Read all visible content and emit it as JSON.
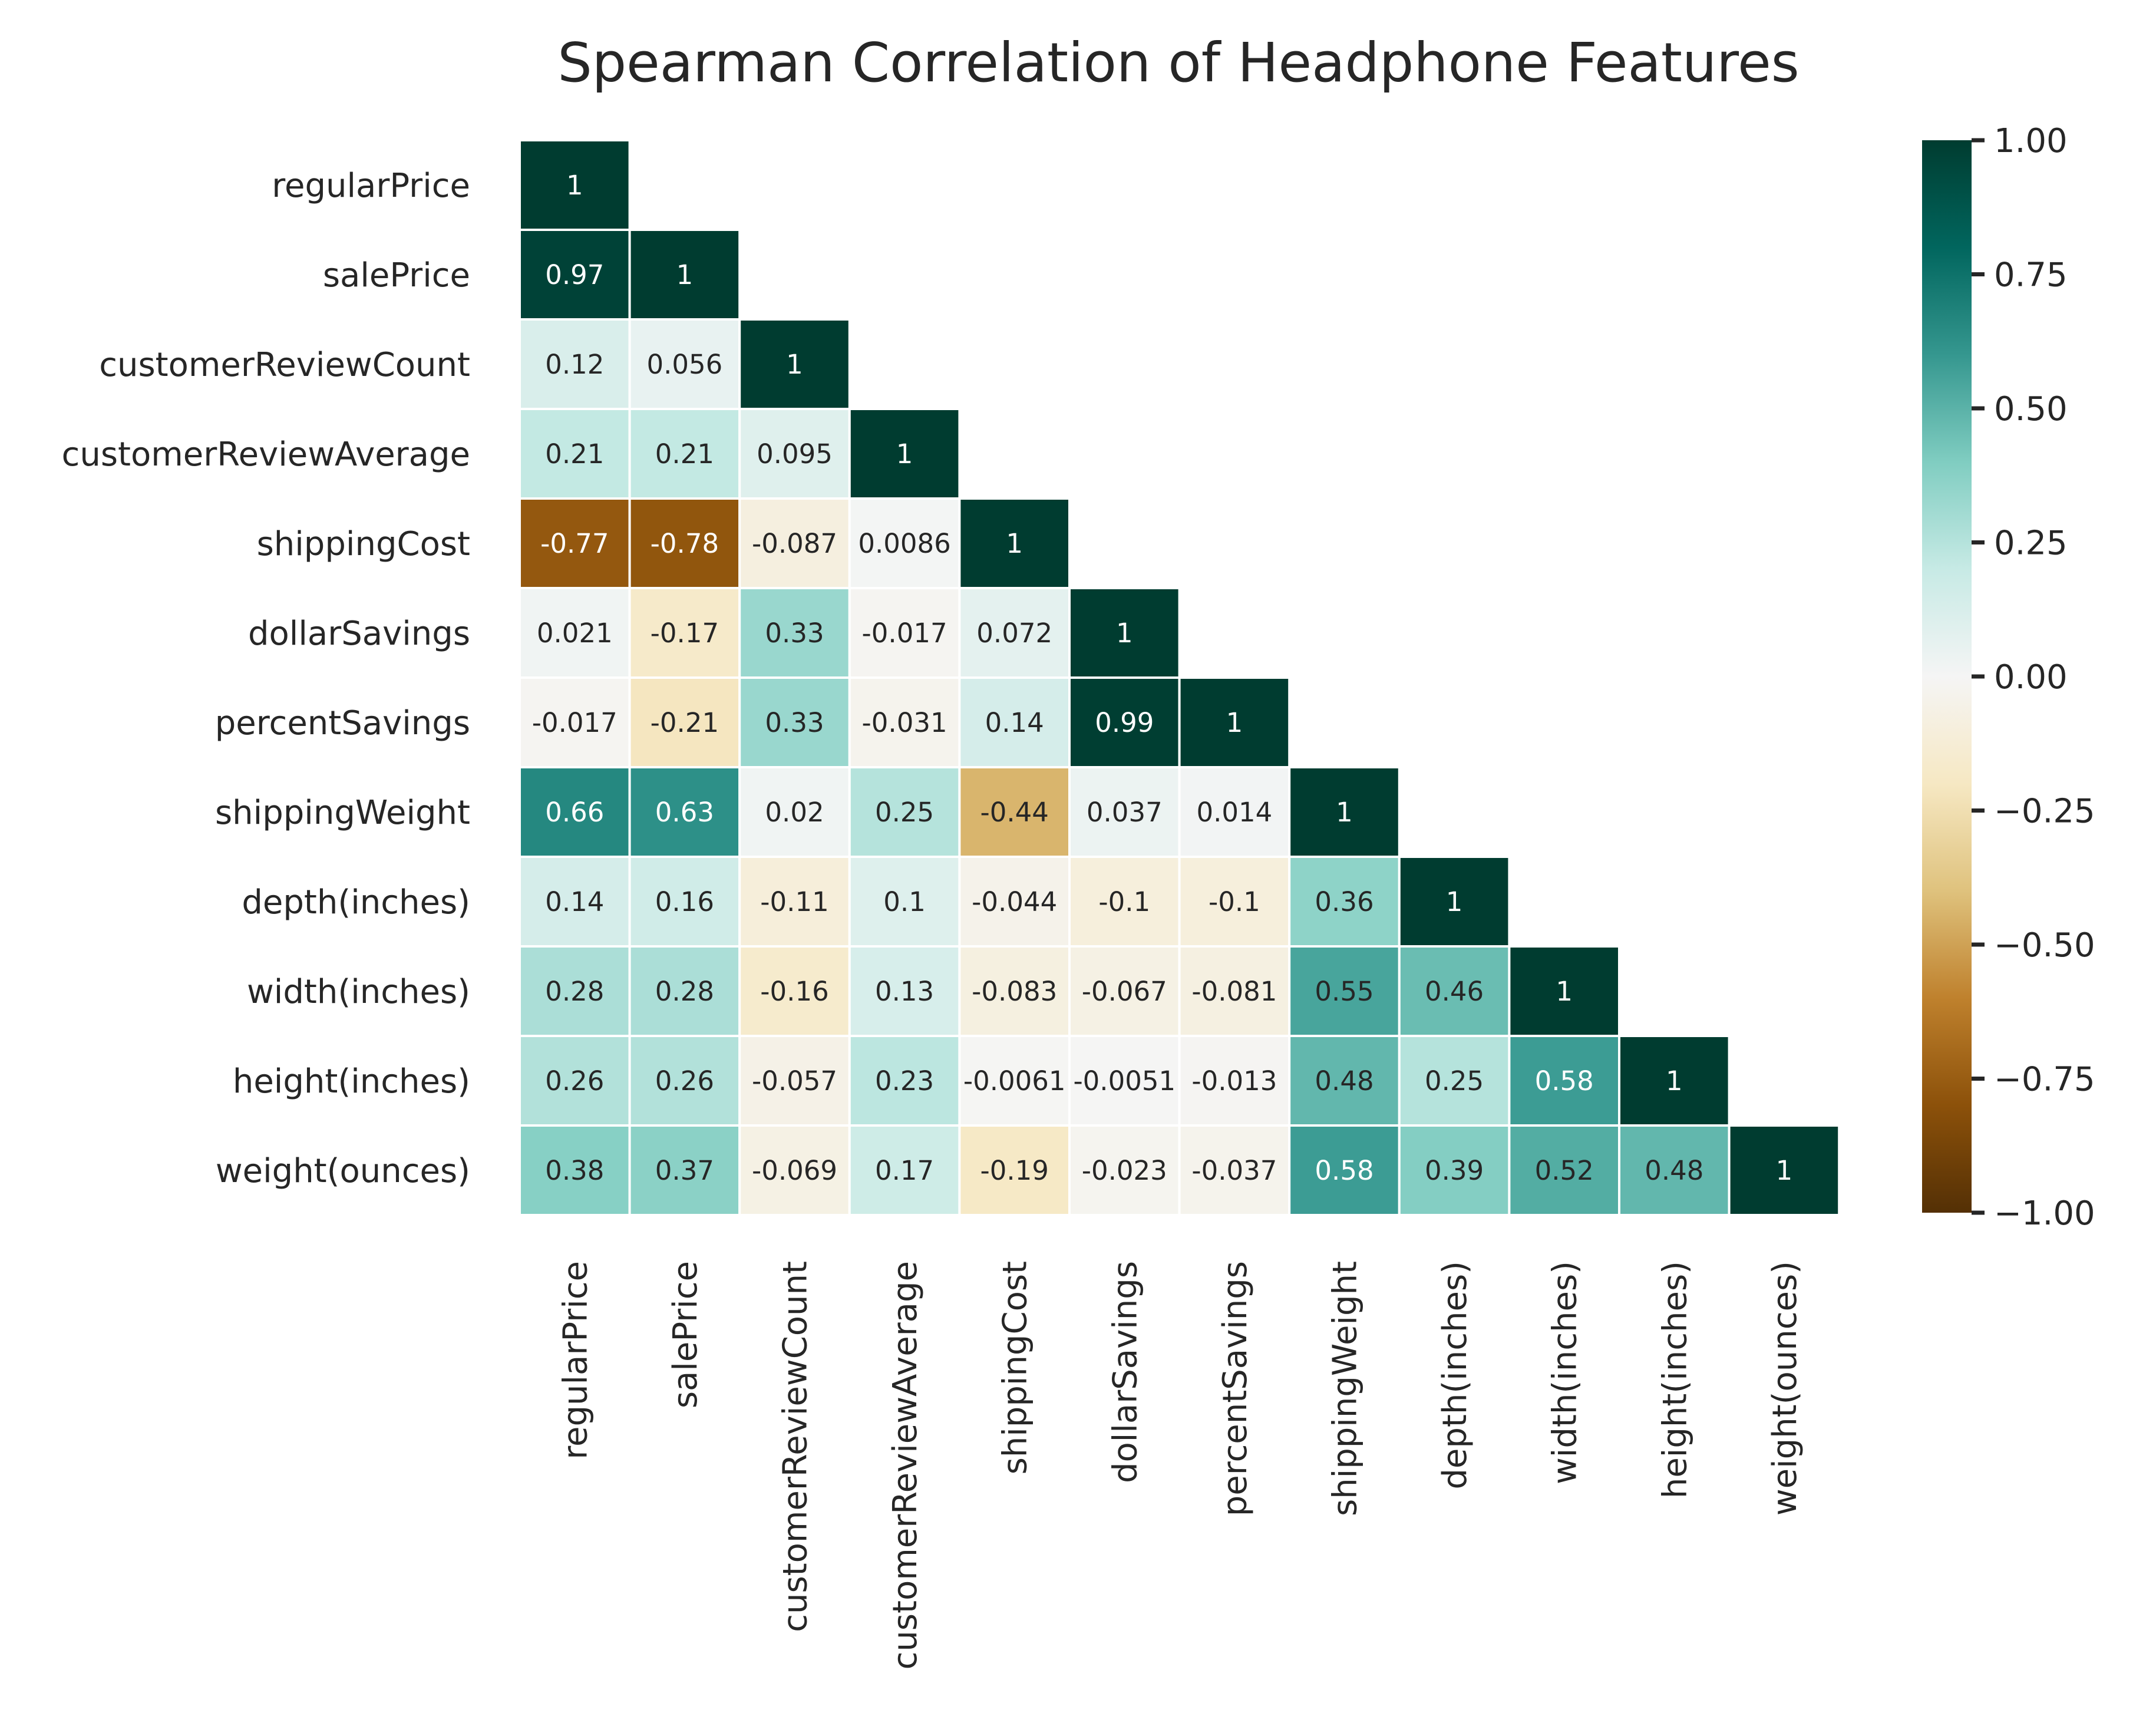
{
  "chart_data": {
    "type": "heatmap",
    "title": "Spearman Correlation of Headphone Features",
    "labels": [
      "regularPrice",
      "salePrice",
      "customerReviewCount",
      "customerReviewAverage",
      "shippingCost",
      "dollarSavings",
      "percentSavings",
      "shippingWeight",
      "depth(inches)",
      "width(inches)",
      "height(inches)",
      "weight(ounces)"
    ],
    "lower_triangle_values": [
      [
        1
      ],
      [
        0.97,
        1
      ],
      [
        0.12,
        0.056,
        1
      ],
      [
        0.21,
        0.21,
        0.095,
        1
      ],
      [
        -0.77,
        -0.78,
        -0.087,
        0.0086,
        1
      ],
      [
        0.021,
        -0.17,
        0.33,
        -0.017,
        0.072,
        1
      ],
      [
        -0.017,
        -0.21,
        0.33,
        -0.031,
        0.14,
        0.99,
        1
      ],
      [
        0.66,
        0.63,
        0.02,
        0.25,
        -0.44,
        0.037,
        0.014,
        1
      ],
      [
        0.14,
        0.16,
        -0.11,
        0.1,
        -0.044,
        -0.1,
        -0.1,
        0.36,
        1
      ],
      [
        0.28,
        0.28,
        -0.16,
        0.13,
        -0.083,
        -0.067,
        -0.081,
        0.55,
        0.46,
        1
      ],
      [
        0.26,
        0.26,
        -0.057,
        0.23,
        -0.0061,
        -0.0051,
        -0.013,
        0.48,
        0.25,
        0.58,
        1
      ],
      [
        0.38,
        0.37,
        -0.069,
        0.17,
        -0.19,
        -0.023,
        -0.037,
        0.58,
        0.39,
        0.52,
        0.48,
        1
      ]
    ],
    "mask": "upper-triangle",
    "colormap": "BrBG",
    "vmin": -1,
    "vmax": 1,
    "colorbar_ticks": [
      "1.00",
      "0.75",
      "0.50",
      "0.25",
      "0.00",
      "−0.25",
      "−0.50",
      "−0.75",
      "−1.00"
    ],
    "colorbar_tick_values": [
      1,
      0.75,
      0.5,
      0.25,
      0,
      -0.25,
      -0.5,
      -0.75,
      -1
    ]
  }
}
